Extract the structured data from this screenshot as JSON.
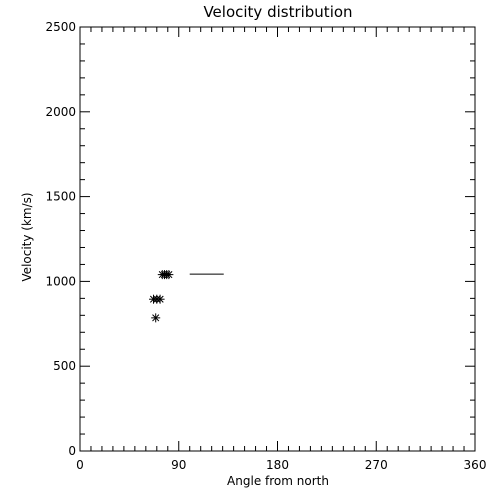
{
  "chart_data": {
    "type": "scatter",
    "title": "Velocity distribution",
    "xlabel": "Angle from north",
    "ylabel": "Velocity (km/s)",
    "xlim": [
      0,
      360
    ],
    "ylim": [
      0,
      2500
    ],
    "xticks": [
      0,
      90,
      180,
      270,
      360
    ],
    "yticks": [
      0,
      500,
      1000,
      1500,
      2000,
      2500
    ],
    "x_minor_step": 10,
    "y_minor_step": 100,
    "grid": false,
    "marker": "asterisk",
    "points": [
      {
        "x": 75,
        "y": 1040
      },
      {
        "x": 77,
        "y": 1040
      },
      {
        "x": 79,
        "y": 1040
      },
      {
        "x": 81,
        "y": 1040
      },
      {
        "x": 67,
        "y": 895
      },
      {
        "x": 70,
        "y": 895
      },
      {
        "x": 73,
        "y": 895
      },
      {
        "x": 69,
        "y": 785
      }
    ],
    "segments": [
      {
        "x": [
          100,
          131
        ],
        "y": [
          1043,
          1043
        ]
      }
    ],
    "colors": {
      "foreground": "#000000",
      "background": "#ffffff"
    }
  }
}
